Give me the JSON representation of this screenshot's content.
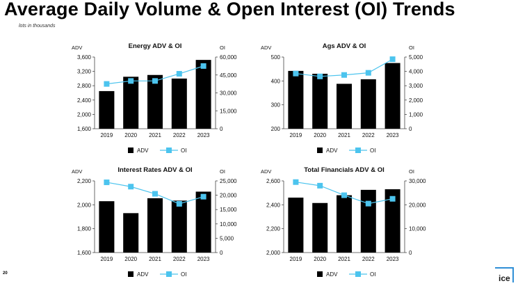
{
  "title": "Average Daily Volume & Open Interest (OI) Trends",
  "subtitle": "lots in thousands",
  "page_number": "20",
  "logo_text": "ice",
  "colors": {
    "bar": "#000000",
    "line": "#4cc4ee"
  },
  "chart_data": [
    {
      "type": "bar",
      "title": "Energy ADV & OI",
      "left_label": "ADV",
      "right_label": "OI",
      "categories": [
        "2019",
        "2020",
        "2021",
        "2022",
        "2023"
      ],
      "ylim": [
        1600,
        3600
      ],
      "yticks": [
        "1,600",
        "2,000",
        "2,400",
        "2,800",
        "3,200",
        "3,600"
      ],
      "y2lim": [
        0,
        60000
      ],
      "y2ticks": [
        "0",
        "15,000",
        "30,000",
        "45,000",
        "60,000"
      ],
      "series": [
        {
          "name": "ADV",
          "type": "bar",
          "axis": "left",
          "values": [
            2650,
            3050,
            3100,
            3000,
            3520
          ]
        },
        {
          "name": "OI",
          "type": "line",
          "axis": "right",
          "values": [
            37500,
            40000,
            40000,
            46000,
            52500
          ]
        }
      ],
      "legend": [
        "ADV",
        "OI"
      ]
    },
    {
      "type": "bar",
      "title": "Ags ADV & OI",
      "left_label": "ADV",
      "right_label": "OI",
      "categories": [
        "2019",
        "2020",
        "2021",
        "2022",
        "2023"
      ],
      "ylim": [
        200,
        500
      ],
      "yticks": [
        "200",
        "300",
        "400",
        "500"
      ],
      "y2lim": [
        0,
        5000
      ],
      "y2ticks": [
        "0",
        "1,000",
        "2,000",
        "3,000",
        "4,000",
        "5,000"
      ],
      "series": [
        {
          "name": "ADV",
          "type": "bar",
          "axis": "left",
          "values": [
            442,
            430,
            388,
            407,
            475
          ]
        },
        {
          "name": "OI",
          "type": "line",
          "axis": "right",
          "values": [
            3850,
            3650,
            3750,
            3900,
            4850
          ]
        }
      ],
      "legend": [
        "ADV",
        "OI"
      ]
    },
    {
      "type": "bar",
      "title": "Interest Rates ADV & OI",
      "left_label": "ADV",
      "right_label": "OI",
      "categories": [
        "2019",
        "2020",
        "2021",
        "2022",
        "2023"
      ],
      "ylim": [
        1600,
        2200
      ],
      "yticks": [
        "1,600",
        "1,800",
        "2,000",
        "2,200"
      ],
      "y2lim": [
        0,
        25000
      ],
      "y2ticks": [
        "0",
        "5,000",
        "10,000",
        "15,000",
        "20,000",
        "25,000"
      ],
      "series": [
        {
          "name": "ADV",
          "type": "bar",
          "axis": "left",
          "values": [
            2030,
            1930,
            2055,
            2035,
            2110
          ]
        },
        {
          "name": "OI",
          "type": "line",
          "axis": "right",
          "values": [
            24500,
            23000,
            20500,
            17000,
            19500
          ]
        }
      ],
      "legend": [
        "ADV",
        "OI"
      ]
    },
    {
      "type": "bar",
      "title": "Total Financials ADV & OI",
      "left_label": "ADV",
      "right_label": "OI",
      "categories": [
        "2019",
        "2020",
        "2021",
        "2022",
        "2023"
      ],
      "ylim": [
        2000,
        2600
      ],
      "yticks": [
        "2,000",
        "2,200",
        "2,400",
        "2,600"
      ],
      "y2lim": [
        0,
        30000
      ],
      "y2ticks": [
        "0",
        "10,000",
        "20,000",
        "30,000"
      ],
      "series": [
        {
          "name": "ADV",
          "type": "bar",
          "axis": "left",
          "values": [
            2460,
            2415,
            2480,
            2525,
            2530
          ]
        },
        {
          "name": "OI",
          "type": "line",
          "axis": "right",
          "values": [
            29500,
            28000,
            24000,
            20500,
            22500
          ]
        }
      ],
      "legend": [
        "ADV",
        "OI"
      ]
    }
  ]
}
